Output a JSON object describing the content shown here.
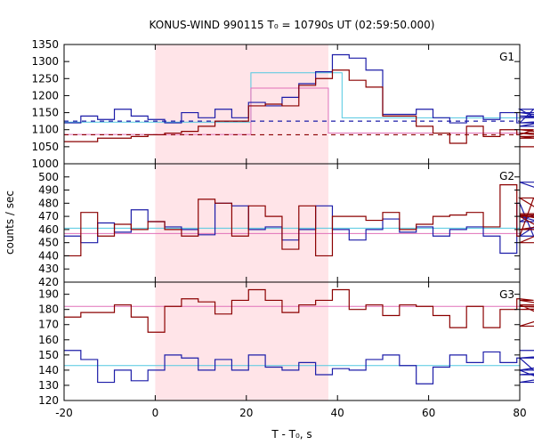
{
  "chart_data": {
    "type": "line",
    "title": "KONUS-WIND 990115 T₀ = 10790s UT (02:59:50.000)",
    "xlabel": "T - T₀, s",
    "ylabel": "counts / sec",
    "xlim": [
      -20,
      80
    ],
    "xticks": [
      -20,
      0,
      20,
      40,
      60,
      80
    ],
    "x_step": 3.68,
    "highlight_interval": [
      0,
      38
    ],
    "highlight_color": "#ffe4e8",
    "series_colors": {
      "red_data": "#8b0000",
      "blue_data": "#1c1ca8",
      "red_fit": "#e070b8",
      "blue_fit": "#50c8e0"
    },
    "panels": [
      {
        "label": "G1",
        "ylim": [
          1000,
          1350
        ],
        "yticks": [
          1000,
          1050,
          1100,
          1150,
          1200,
          1250,
          1300,
          1350
        ],
        "red_values": [
          1065,
          1065,
          1075,
          1075,
          1080,
          1085,
          1090,
          1095,
          1110,
          1125,
          1125,
          1170,
          1175,
          1170,
          1230,
          1250,
          1275,
          1245,
          1225,
          1140,
          1140,
          1110,
          1090,
          1060,
          1110,
          1080,
          1100,
          1085,
          1100,
          1090,
          1075,
          1080,
          1080,
          1050
        ],
        "blue_values": [
          1120,
          1140,
          1130,
          1160,
          1140,
          1130,
          1120,
          1150,
          1135,
          1160,
          1135,
          1180,
          1170,
          1195,
          1235,
          1270,
          1320,
          1310,
          1275,
          1145,
          1145,
          1160,
          1135,
          1120,
          1140,
          1130,
          1150,
          1120,
          1160,
          1110,
          1135,
          1150,
          1120,
          1140
        ],
        "blue_fit": [
          [
            -20,
            1122
          ],
          [
            21,
            1122
          ],
          [
            21,
            1267
          ],
          [
            41,
            1267
          ],
          [
            41,
            1135
          ],
          [
            80,
            1135
          ]
        ],
        "red_fit": [
          [
            -20,
            1086
          ],
          [
            21,
            1086
          ],
          [
            21,
            1222
          ],
          [
            38,
            1222
          ],
          [
            38,
            1090
          ],
          [
            80,
            1090
          ]
        ],
        "blue_dashed_level": 1125,
        "red_dashed_level": 1085
      },
      {
        "label": "G2",
        "ylim": [
          420,
          510
        ],
        "yticks": [
          420,
          430,
          440,
          450,
          460,
          470,
          480,
          490,
          500
        ],
        "red_values": [
          440,
          473,
          455,
          464,
          460,
          466,
          460,
          455,
          483,
          480,
          455,
          478,
          470,
          445,
          478,
          440,
          470,
          470,
          467,
          473,
          460,
          464,
          470,
          471,
          473,
          462,
          494,
          455,
          484,
          470,
          450,
          471,
          460,
          472
        ],
        "blue_values": [
          455,
          450,
          465,
          458,
          475,
          466,
          462,
          460,
          456,
          480,
          478,
          460,
          462,
          452,
          460,
          478,
          460,
          452,
          460,
          468,
          458,
          462,
          455,
          460,
          462,
          455,
          442,
          480,
          455,
          470,
          460,
          466,
          496,
          470
        ],
        "red_fit_level": 457,
        "blue_fit_level": 461
      },
      {
        "label": "G3",
        "ylim": [
          120,
          198
        ],
        "yticks": [
          120,
          130,
          140,
          150,
          160,
          170,
          180,
          190
        ],
        "red_values": [
          175,
          178,
          178,
          183,
          175,
          165,
          182,
          187,
          185,
          177,
          186,
          193,
          186,
          178,
          183,
          186,
          193,
          180,
          183,
          176,
          183,
          182,
          176,
          168,
          182,
          168,
          180,
          187,
          186,
          183,
          169,
          182,
          180,
          182
        ],
        "blue_values": [
          153,
          147,
          132,
          140,
          133,
          140,
          150,
          148,
          140,
          147,
          140,
          150,
          142,
          140,
          145,
          137,
          141,
          140,
          147,
          150,
          143,
          131,
          142,
          150,
          145,
          152,
          145,
          148,
          140,
          132,
          137,
          140,
          148,
          153
        ],
        "red_fit_level": 182,
        "blue_fit_level": 143
      }
    ]
  }
}
